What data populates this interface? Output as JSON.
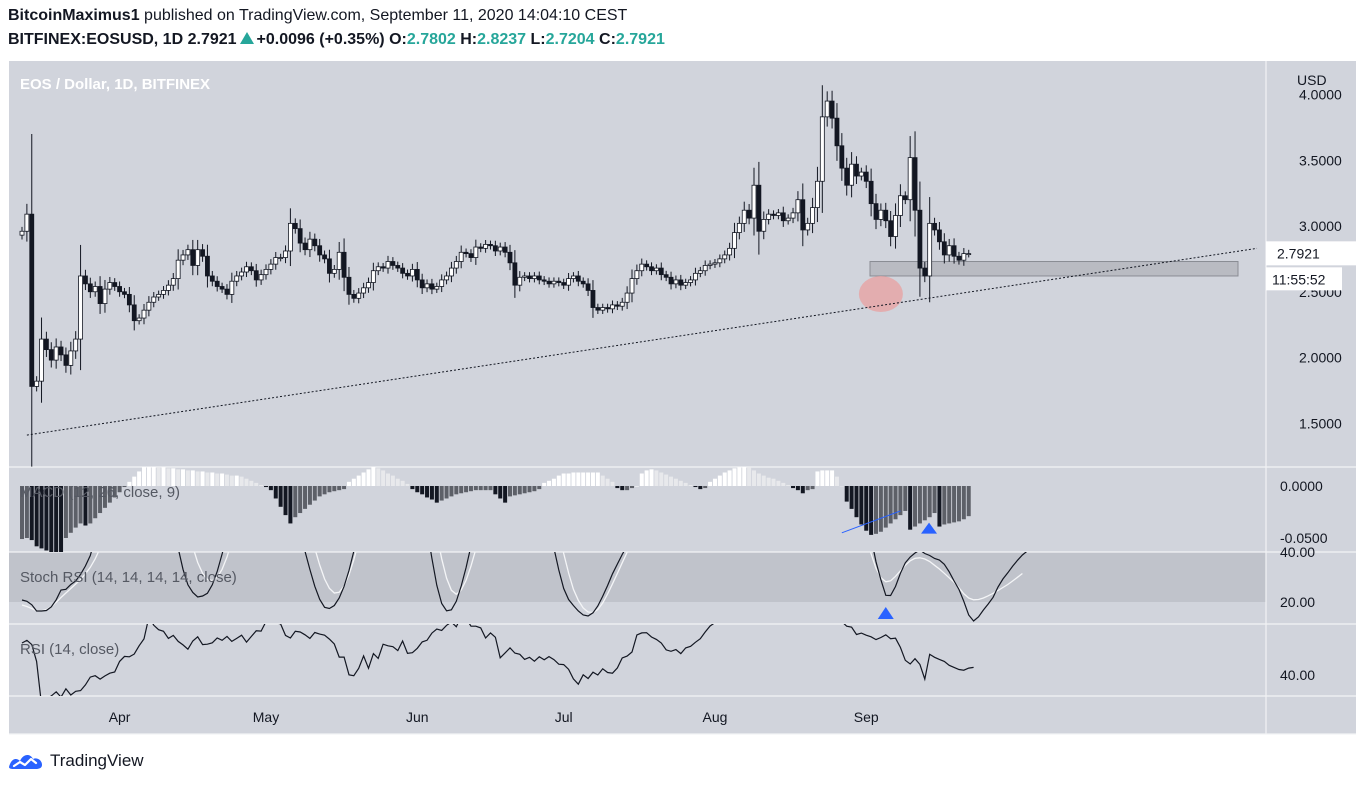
{
  "header": {
    "author": "BitcoinMaximus1",
    "published_text": " published on TradingView.com, September 11, 2020 14:04:10 CEST",
    "symbol": "BITFINEX:EOSUSD, 1D",
    "last": "2.7921",
    "change": "+0.0096 (+0.35%)",
    "o_label": "O:",
    "o_value": "2.7802",
    "h_label": "H:",
    "h_value": "2.8237",
    "l_label": "L:",
    "l_value": "2.7204",
    "c_label": "C:",
    "c_value": "2.7921"
  },
  "footer": {
    "brand": "TradingView",
    "logo_icon": "tradingview-logo-icon"
  },
  "colors": {
    "panel_bg": "#d1d4dc",
    "stoch_band": "#c0c3cb",
    "candle_up": "#ffffff",
    "candle_down": "#131722",
    "highlight_circle": "#e8a0a0",
    "support_zone": "#b0b3ba",
    "divergence_line": "#2962ff",
    "marker": "#2962ff"
  },
  "chart_data": {
    "type": "candlestick",
    "title": "EOS / Dollar, 1D, BITFINEX",
    "currency_label": "USD",
    "last_price_label": "2.7921",
    "countdown_label": "11:55:52",
    "x_labels": [
      "Apr",
      "May",
      "Jun",
      "Jul",
      "Aug",
      "Sep"
    ],
    "price_ticks": [
      "4.0000",
      "3.5000",
      "3.0000",
      "2.5000",
      "2.0000",
      "1.5000"
    ],
    "price_range": [
      1.3,
      4.15
    ],
    "support_zone": [
      2.62,
      2.73
    ],
    "trendline": {
      "from": [
        "2020-03-13",
        1.41
      ],
      "to": [
        "2020-09-11",
        2.83
      ]
    },
    "close": [
      2.96,
      3.09,
      1.78,
      1.82,
      2.14,
      2.06,
      1.98,
      2.08,
      2.02,
      1.94,
      2.05,
      2.14,
      2.62,
      2.56,
      2.5,
      2.54,
      2.41,
      2.52,
      2.57,
      2.54,
      2.5,
      2.48,
      2.4,
      2.28,
      2.3,
      2.36,
      2.42,
      2.46,
      2.48,
      2.51,
      2.55,
      2.6,
      2.74,
      2.78,
      2.82,
      2.7,
      2.82,
      2.77,
      2.62,
      2.58,
      2.54,
      2.52,
      2.48,
      2.58,
      2.62,
      2.65,
      2.69,
      2.66,
      2.59,
      2.63,
      2.67,
      2.71,
      2.76,
      2.76,
      2.81,
      3.02,
      2.98,
      2.87,
      2.82,
      2.9,
      2.85,
      2.78,
      2.75,
      2.64,
      2.67,
      2.8,
      2.61,
      2.48,
      2.45,
      2.49,
      2.53,
      2.57,
      2.66,
      2.69,
      2.68,
      2.73,
      2.7,
      2.68,
      2.64,
      2.62,
      2.67,
      2.59,
      2.53,
      2.56,
      2.52,
      2.54,
      2.59,
      2.62,
      2.68,
      2.73,
      2.8,
      2.79,
      2.76,
      2.84,
      2.83,
      2.86,
      2.85,
      2.81,
      2.84,
      2.8,
      2.72,
      2.55,
      2.61,
      2.62,
      2.6,
      2.62,
      2.59,
      2.58,
      2.56,
      2.58,
      2.57,
      2.55,
      2.6,
      2.62,
      2.58,
      2.56,
      2.51,
      2.38,
      2.36,
      2.38,
      2.37,
      2.4,
      2.39,
      2.42,
      2.49,
      2.6,
      2.66,
      2.71,
      2.69,
      2.66,
      2.68,
      2.63,
      2.61,
      2.56,
      2.59,
      2.55,
      2.57,
      2.59,
      2.64,
      2.66,
      2.7,
      2.71,
      2.72,
      2.75,
      2.78,
      2.83,
      2.95,
      3.02,
      3.12,
      3.06,
      3.31,
      2.96,
      3.05,
      3.09,
      3.08,
      3.1,
      3.04,
      3.06,
      3.1,
      3.2,
      2.97,
      3.02,
      3.14,
      3.34,
      3.83,
      3.95,
      3.82,
      3.61,
      3.44,
      3.31,
      3.47,
      3.38,
      3.41,
      3.34,
      3.17,
      3.05,
      3.12,
      3.04,
      2.92,
      3.08,
      3.23,
      3.2,
      3.52,
      3.12,
      2.68,
      2.62,
      3.02,
      2.97,
      2.88,
      2.78,
      2.85,
      2.77,
      2.74,
      2.79,
      2.79
    ],
    "price_note": "close is the daily EOS/USD close on Bitfinex, from 2020-03-12 to 2020-09-11 (read off the price axis)",
    "macd": {
      "label": "MACD (12, 26, close, 9)",
      "ticks": [
        "0.0000",
        "-0.0500"
      ],
      "histogram": [
        -0.051,
        -0.05,
        -0.052,
        -0.058,
        -0.06,
        -0.062,
        -0.064,
        -0.066,
        -0.068,
        -0.05,
        -0.045,
        -0.04,
        -0.036,
        -0.038,
        -0.036,
        -0.031,
        -0.026,
        -0.021,
        -0.016,
        -0.011,
        -0.006,
        -0.001,
        0.004,
        0.009,
        0.014,
        0.019,
        0.019,
        0.019,
        0.018,
        0.018,
        0.017,
        0.017,
        0.016,
        0.016,
        0.015,
        0.015,
        0.014,
        0.014,
        0.013,
        0.013,
        0.012,
        0.012,
        0.011,
        0.01,
        0.01,
        0.009,
        0.007,
        0.005,
        0.003,
        0.001,
        -0.001,
        -0.004,
        -0.012,
        -0.02,
        -0.028,
        -0.036,
        -0.03,
        -0.026,
        -0.022,
        -0.018,
        -0.014,
        -0.01,
        -0.008,
        -0.006,
        -0.005,
        -0.004,
        -0.003,
        0.004,
        0.007,
        0.01,
        0.013,
        0.016,
        0.019,
        0.017,
        0.015,
        0.012,
        0.01,
        0.007,
        0.005,
        0.002,
        -0.003,
        -0.006,
        -0.008,
        -0.011,
        -0.013,
        -0.016,
        -0.014,
        -0.012,
        -0.01,
        -0.008,
        -0.007,
        -0.006,
        -0.005,
        -0.004,
        -0.004,
        -0.004,
        -0.004,
        -0.008,
        -0.012,
        -0.016,
        -0.01,
        -0.009,
        -0.008,
        -0.007,
        -0.006,
        -0.005,
        -0.003,
        0.003,
        0.005,
        0.007,
        0.01,
        0.012,
        0.012,
        0.013,
        0.013,
        0.013,
        0.013,
        0.013,
        0.013,
        0.01,
        0.007,
        0.004,
        -0.002,
        -0.004,
        -0.004,
        -0.002,
        0.0,
        0.012,
        0.015,
        0.016,
        0.015,
        0.013,
        0.011,
        0.009,
        0.007,
        0.005,
        0.003,
        0.001,
        -0.001,
        -0.003,
        -0.002,
        0.004,
        0.007,
        0.01,
        0.013,
        0.015,
        0.017,
        0.018,
        0.019,
        0.018,
        0.015,
        0.012,
        0.01,
        0.008,
        0.007,
        0.005,
        0.003,
        0.001,
        -0.002,
        -0.004,
        -0.007,
        -0.004,
        -0.003,
        0.014,
        0.015,
        0.015,
        0.015,
        0.009,
        0.0,
        -0.015,
        -0.022,
        -0.03,
        -0.037,
        -0.043,
        -0.047,
        -0.046,
        -0.044,
        -0.04,
        -0.036,
        -0.032,
        -0.028,
        -0.024,
        -0.042,
        -0.039,
        -0.036,
        -0.033,
        -0.03,
        -0.026,
        -0.039,
        -0.037,
        -0.036,
        -0.035,
        -0.034,
        -0.032,
        -0.029
      ],
      "divergence": [
        [
          "2020-08-27",
          -0.045
        ],
        [
          "2020-09-08",
          -0.024
        ]
      ]
    },
    "stoch_rsi": {
      "label": "Stoch RSI (14, 14, 14, 14, close)",
      "ticks": [
        "40.00",
        "20.00"
      ],
      "upper_band": 40,
      "lower_band": 20,
      "k": [
        20.8,
        20.3,
        18.9,
        16.4,
        16.4,
        16.6,
        18.1,
        20.9,
        24.8,
        25.1,
        27.0,
        28.4,
        31.1,
        34.4,
        38.6,
        45.7,
        52.9,
        60.6,
        68.6,
        76.8,
        84.9,
        92.4,
        97.4,
        99.9,
        99.9,
        96.3,
        91.4,
        84.6,
        77.0,
        68.4,
        59.0,
        49.7,
        41.5,
        33.1,
        26.9,
        23.8,
        22.0,
        22.4,
        23.5,
        26.9,
        32.2,
        39.2,
        46.9,
        55.8,
        64.8,
        74.2,
        82.9,
        90.9,
        96.8,
        99.8,
        99.9,
        96.3,
        90.8,
        83.4,
        75.4,
        66.8,
        57.5,
        48.6,
        40.3,
        33.0,
        26.3,
        21.1,
        17.9,
        17.4,
        18.6,
        21.6,
        26.3,
        32.6,
        40.3,
        49.1,
        58.3,
        67.6,
        76.7,
        84.8,
        91.6,
        96.5,
        99.2,
        99.5,
        96.8,
        91.6,
        83.5,
        73.2,
        61.7,
        49.4,
        37.5,
        26.7,
        19.4,
        16.5,
        16.9,
        20.3,
        26.4,
        33.8,
        42.5,
        51.7,
        60.9,
        69.8,
        77.6,
        84.5,
        90.0,
        94.4,
        97.2,
        98.6,
        98.4,
        96.2,
        91.5,
        84.3,
        75.1,
        64.1,
        52.1,
        41.6,
        32.8,
        25.4,
        21.0,
        18.6,
        16.4,
        14.8,
        14.4,
        15.7,
        18.4,
        22.3,
        26.6,
        31.3,
        35.2,
        39.0,
        42.5,
        45.7,
        47.7,
        50.0,
        55.4,
        61.6,
        68.3,
        75.2,
        81.4,
        86.2,
        89.6,
        92.2,
        94.1,
        95.6,
        96.8,
        97.8,
        98.6,
        99.1,
        99.4,
        99.5,
        99.1,
        98.3,
        97.6,
        96.8,
        95.7,
        93.6,
        90.2,
        87.4,
        84.9,
        83.7,
        82.7,
        81.8,
        81.3,
        80.4,
        79.8,
        79.5,
        80.6,
        82.8,
        84.9,
        86.2,
        87.7,
        89.9,
        91.9,
        93.5,
        92.5,
        89.9,
        84.2,
        76.0,
        66.6,
        56.0,
        45.7,
        36.1,
        28.9,
        22.7,
        22.6,
        26.2,
        31.5,
        35.7,
        38.0,
        39.6,
        40.8,
        39.4,
        38.6,
        37.4,
        36.8,
        35.1,
        32.1,
        28.4,
        25.0,
        20.3,
        14.8,
        12.4,
        14.1,
        16.8,
        19.2,
        21.9,
        26.0,
        29.2,
        31.7,
        34.3,
        36.7,
        38.8,
        40.4,
        42.2
      ],
      "d": [
        18.8,
        18.2,
        17.4,
        16.5,
        16.5,
        17.0,
        18.2,
        19.9,
        21.8,
        23.6,
        25.4,
        27.2,
        29.0,
        31.3,
        33.9,
        37.3,
        41.5,
        46.5,
        52.5,
        59.3,
        66.8,
        74.5,
        81.6,
        87.6,
        92.5,
        96.0,
        97.8,
        97.6,
        95.3,
        90.4,
        83.8,
        76.0,
        67.3,
        58.1,
        49.5,
        42.1,
        35.8,
        31.5,
        29.0,
        28.6,
        29.9,
        33.1,
        38.0,
        44.5,
        52.2,
        60.6,
        69.0,
        77.3,
        85.0,
        91.5,
        96.0,
        98.2,
        97.6,
        94.4,
        89.1,
        82.3,
        74.3,
        65.6,
        56.9,
        48.8,
        41.5,
        34.8,
        29.2,
        25.5,
        23.6,
        23.9,
        26.4,
        30.9,
        36.9,
        44.2,
        52.3,
        60.8,
        69.2,
        77.0,
        84.3,
        90.5,
        95.0,
        97.6,
        98.3,
        96.5,
        92.3,
        85.6,
        77.1,
        67.2,
        57.1,
        47.0,
        37.3,
        29.5,
        24.7,
        23.1,
        24.8,
        28.7,
        34.4,
        41.1,
        48.5,
        56.4,
        64.3,
        72.1,
        79.0,
        84.9,
        89.9,
        93.9,
        96.6,
        97.8,
        97.0,
        93.8,
        88.0,
        80.2,
        70.6,
        59.8,
        48.9,
        39.4,
        31.6,
        25.1,
        20.7,
        17.6,
        16.0,
        15.8,
        17.0,
        19.6,
        23.2,
        27.3,
        31.5,
        35.7,
        39.9,
        43.9,
        47.8,
        51.9,
        56.8,
        62.6,
        68.8,
        75.2,
        81.1,
        86.1,
        89.9,
        92.6,
        94.5,
        96.1,
        97.4,
        98.4,
        99.0,
        99.4,
        99.5,
        99.0,
        98.2,
        97.2,
        95.9,
        94.4,
        92.5,
        90.2,
        87.9,
        85.8,
        84.2,
        83.0,
        82.1,
        81.4,
        81.0,
        81.1,
        81.8,
        82.8,
        84.0,
        85.7,
        87.5,
        89.4,
        90.6,
        90.9,
        90.0,
        87.5,
        83.4,
        77.8,
        70.5,
        62.8,
        54.7,
        46.6,
        39.3,
        33.5,
        29.7,
        28.1,
        28.5,
        30.3,
        32.5,
        34.7,
        36.5,
        37.5,
        37.7,
        37.2,
        36.2,
        34.7,
        33.2,
        31.5,
        29.7,
        27.9,
        25.7,
        23.3,
        21.6,
        20.9,
        21.0,
        21.6,
        22.5,
        23.5,
        24.6,
        25.8,
        27.0,
        28.4,
        29.9,
        31.4
      ],
      "markers": [
        [
          "2020-09-05",
          16
        ]
      ]
    },
    "rsi": {
      "label": "RSI (14, close)",
      "ticks": [
        "40.00"
      ],
      "values": [
        53.9,
        55.1,
        53.2,
        45.9,
        27.2,
        29.5,
        30.9,
        32.7,
        30.4,
        34.0,
        31.3,
        32.9,
        33.2,
        35.7,
        39.1,
        39.7,
        38.2,
        39.6,
        40.8,
        41.3,
        45.9,
        48.1,
        47.9,
        49.1,
        52.7,
        55.7,
        65.2,
        61.6,
        59.7,
        59.0,
        55.9,
        57.2,
        54.6,
        53.1,
        51.2,
        54.8,
        56.6,
        53.2,
        53.4,
        54.0,
        56.1,
        55.1,
        56.8,
        54.6,
        55.9,
        57.3,
        54.3,
        56.8,
        59.2,
        59.1,
        63.2,
        63.7,
        62.7,
        62.2,
        57.2,
        56.1,
        59.0,
        58.7,
        57.5,
        55.9,
        58.5,
        57.8,
        57.3,
        55.6,
        53.5,
        47.8,
        47.8,
        40.1,
        39.7,
        42.9,
        48.3,
        42.9,
        49.3,
        47.2,
        53.4,
        52.7,
        52.3,
        50.6,
        54.8,
        49.4,
        49.7,
        51.6,
        54.4,
        55.1,
        58.2,
        60.0,
        59.4,
        61.6,
        63.0,
        61.0,
        65.4,
        64.6,
        61.2,
        61.2,
        60.5,
        56.1,
        58.3,
        56.4,
        47.5,
        49.6,
        51.8,
        49.5,
        49.0,
        46.8,
        47.7,
        46.0,
        47.9,
        46.6,
        48.0,
        46.7,
        44.7,
        44.5,
        42.5,
        38.3,
        36.0,
        40.1,
        38.5,
        41.2,
        40.0,
        42.7,
        41.1,
        40.8,
        43.1,
        47.4,
        48.2,
        50.0,
        57.4,
        58.3,
        58.4,
        56.5,
        55.5,
        53.9,
        50.9,
        50.3,
        51.1,
        49.3,
        51.8,
        52.5,
        54.2,
        55.8,
        58.7,
        61.3,
        62.8,
        66.1,
        66.2,
        68.0,
        69.5,
        66.1,
        68.2,
        67.4,
        70.5,
        68.5,
        70.0,
        67.0,
        68.7,
        72.0,
        69.5,
        69.2,
        70.9,
        74.1,
        75.7,
        79.2,
        74.9,
        71.5,
        68.4,
        65.5,
        64.1,
        64.8,
        63.2,
        61.2,
        60.8,
        57.6,
        58.2,
        57.3,
        56.6,
        55.4,
        56.3,
        57.5,
        55.8,
        56.0,
        52.0,
        46.4,
        44.8,
        47.1,
        44.6,
        38.2,
        49.0,
        47.7,
        46.8,
        45.9,
        44.2,
        43.3,
        42.4,
        42.1,
        43.0,
        43.3
      ]
    }
  }
}
